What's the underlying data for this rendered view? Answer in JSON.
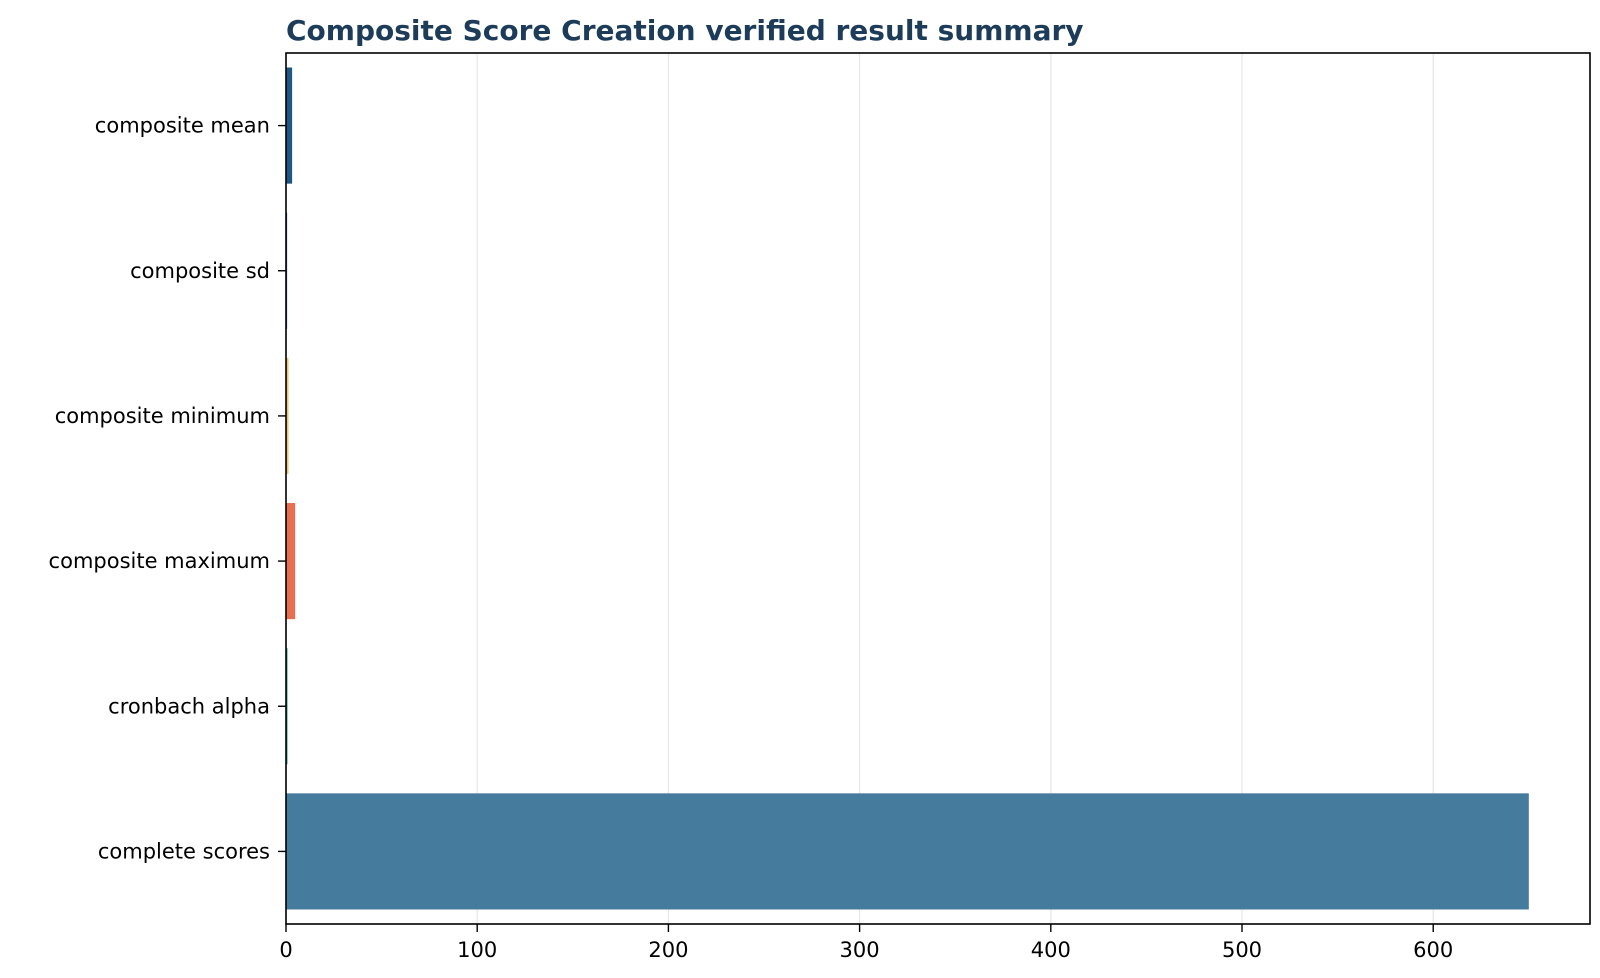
{
  "chart_data": {
    "type": "bar",
    "orientation": "horizontal",
    "title": "Composite Score Creation verified result summary",
    "xlabel": "",
    "ylabel": "",
    "categories": [
      "composite mean",
      "composite sd",
      "composite minimum",
      "composite maximum",
      "cronbach alpha",
      "complete scores"
    ],
    "values": [
      3.2,
      0.6,
      1.3,
      4.8,
      0.8,
      650
    ],
    "colors": [
      "#1f5783",
      "#2f6f9a",
      "#e9c46a",
      "#e76f51",
      "#2a9d8f",
      "#457b9d"
    ],
    "xlim": [
      0,
      682
    ],
    "xticks": [
      0,
      100,
      200,
      300,
      400,
      500,
      600
    ],
    "grid": {
      "x": true,
      "y": false
    },
    "title_color": "#1d3c5a",
    "grid_color": "#e6e6e6"
  }
}
